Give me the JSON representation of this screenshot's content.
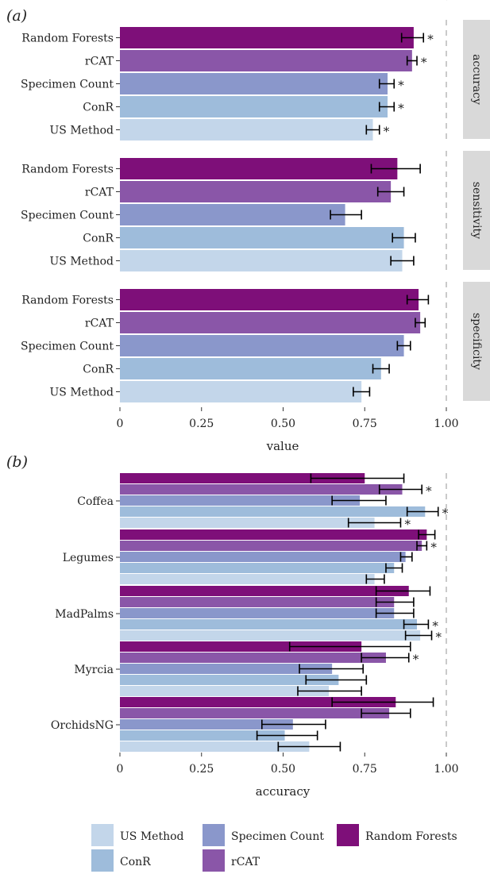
{
  "colors": {
    "US Method": "#c3d6ea",
    "ConR": "#9ebcdb",
    "Specimen Count": "#8a97cb",
    "rCAT": "#8a56a8",
    "Random Forests": "#7e0f79",
    "strip_bg": "#d9d9d9",
    "dashed_line": "#bdbdbd",
    "error_bar": "#000000"
  },
  "chart_data": [
    {
      "type": "bar",
      "orientation": "horizontal",
      "panel_label": "(a)",
      "xlabel": "value",
      "xlim": [
        0,
        1
      ],
      "x_ticks": [
        "0",
        "0.25",
        "0.50",
        "0.75",
        "1.00"
      ],
      "x_tick_values": [
        0,
        0.25,
        0.5,
        0.75,
        1.0
      ],
      "reference_line": 1.0,
      "categories": [
        "Random Forests",
        "rCAT",
        "Specimen Count",
        "ConR",
        "US Method"
      ],
      "facets": [
        {
          "name": "accuracy",
          "values": [
            0.9,
            0.895,
            0.82,
            0.82,
            0.775
          ],
          "err_low": [
            0.863,
            0.88,
            0.795,
            0.795,
            0.755
          ],
          "err_high": [
            0.93,
            0.91,
            0.84,
            0.84,
            0.795
          ],
          "significant": [
            true,
            true,
            true,
            true,
            true
          ]
        },
        {
          "name": "sensitivity",
          "values": [
            0.85,
            0.83,
            0.69,
            0.87,
            0.865
          ],
          "err_low": [
            0.77,
            0.79,
            0.645,
            0.835,
            0.83
          ],
          "err_high": [
            0.92,
            0.87,
            0.74,
            0.905,
            0.9
          ],
          "significant": [
            false,
            false,
            false,
            false,
            false
          ]
        },
        {
          "name": "specificity",
          "values": [
            0.915,
            0.92,
            0.87,
            0.8,
            0.74
          ],
          "err_low": [
            0.88,
            0.905,
            0.85,
            0.775,
            0.715
          ],
          "err_high": [
            0.945,
            0.935,
            0.89,
            0.825,
            0.765
          ],
          "significant": [
            false,
            false,
            false,
            false,
            false
          ]
        }
      ]
    },
    {
      "type": "bar",
      "orientation": "horizontal",
      "panel_label": "(b)",
      "xlabel": "accuracy",
      "xlim": [
        0,
        1
      ],
      "x_ticks": [
        "0",
        "0.25",
        "0.50",
        "0.75",
        "1.00"
      ],
      "x_tick_values": [
        0,
        0.25,
        0.5,
        0.75,
        1.0
      ],
      "reference_line": 1.0,
      "groups": [
        "Coffea",
        "Legumes",
        "MadPalms",
        "Myrcia",
        "OrchidsNG"
      ],
      "series": [
        {
          "name": "Random Forests",
          "values": [
            0.75,
            0.94,
            0.885,
            0.74,
            0.845
          ],
          "err_low": [
            0.585,
            0.915,
            0.785,
            0.52,
            0.65
          ],
          "err_high": [
            0.87,
            0.965,
            0.95,
            0.89,
            0.96
          ],
          "significant": [
            false,
            false,
            false,
            false,
            false
          ]
        },
        {
          "name": "rCAT",
          "values": [
            0.865,
            0.925,
            0.84,
            0.815,
            0.825
          ],
          "err_low": [
            0.795,
            0.91,
            0.785,
            0.74,
            0.74
          ],
          "err_high": [
            0.925,
            0.94,
            0.9,
            0.885,
            0.89
          ],
          "significant": [
            true,
            true,
            false,
            true,
            false
          ]
        },
        {
          "name": "Specimen Count",
          "values": [
            0.735,
            0.875,
            0.84,
            0.65,
            0.53
          ],
          "err_low": [
            0.65,
            0.86,
            0.785,
            0.55,
            0.435
          ],
          "err_high": [
            0.815,
            0.895,
            0.9,
            0.745,
            0.63
          ],
          "significant": [
            false,
            false,
            false,
            false,
            false
          ]
        },
        {
          "name": "ConR",
          "values": [
            0.935,
            0.84,
            0.91,
            0.67,
            0.505
          ],
          "err_low": [
            0.88,
            0.815,
            0.87,
            0.57,
            0.42
          ],
          "err_high": [
            0.975,
            0.865,
            0.945,
            0.755,
            0.605
          ],
          "significant": [
            true,
            false,
            true,
            false,
            false
          ]
        },
        {
          "name": "US Method",
          "values": [
            0.78,
            0.78,
            0.92,
            0.64,
            0.58
          ],
          "err_low": [
            0.7,
            0.755,
            0.875,
            0.545,
            0.485
          ],
          "err_high": [
            0.86,
            0.81,
            0.955,
            0.74,
            0.675
          ],
          "significant": [
            true,
            false,
            true,
            false,
            false
          ]
        }
      ]
    }
  ],
  "legend": {
    "placement": "bottom",
    "items": [
      "US Method",
      "ConR",
      "Specimen Count",
      "rCAT",
      "Random Forests"
    ]
  },
  "annotation_marker": "*"
}
